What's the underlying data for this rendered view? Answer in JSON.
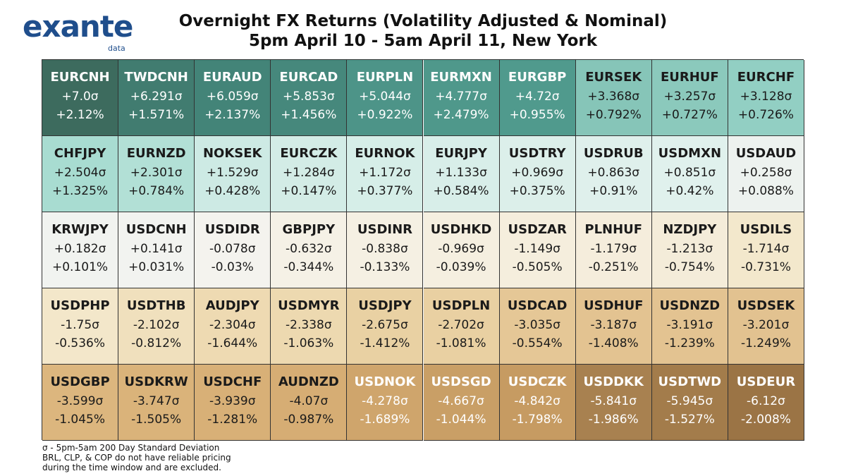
{
  "logo": {
    "word": "exante",
    "sub": "data"
  },
  "title": {
    "line1": "Overnight FX Returns (Volatility Adjusted & Nominal)",
    "line2": "5pm April 10 - 5am April 11, New York"
  },
  "footnote": [
    "σ - 5pm-5am 200 Day Standard Deviation",
    "BRL, CLP, & COP do not have reliable pricing",
    "during the time window and are excluded."
  ],
  "colors": {
    "dark_green": "#3d6b5e",
    "mid_teal": "#4d9488",
    "light_teal": "#92cfc3",
    "pale_teal": "#cdeae4",
    "near_white": "#f1f3f0",
    "cream": "#f3e8cc",
    "tan": "#d9b47a",
    "brown": "#9b7445"
  },
  "chart_data": {
    "type": "table",
    "columns": 10,
    "cells": [
      {
        "pair": "EURCNH",
        "sigma": "+7.0σ",
        "pct": "+2.12%",
        "bg": "#3d6b5e",
        "fg": "#ffffff"
      },
      {
        "pair": "TWDCNH",
        "sigma": "+6.291σ",
        "pct": "+1.571%",
        "bg": "#417c70",
        "fg": "#ffffff"
      },
      {
        "pair": "EURAUD",
        "sigma": "+6.059σ",
        "pct": "+2.137%",
        "bg": "#438478",
        "fg": "#ffffff"
      },
      {
        "pair": "EURCAD",
        "sigma": "+5.853σ",
        "pct": "+1.456%",
        "bg": "#46887c",
        "fg": "#ffffff"
      },
      {
        "pair": "EURPLN",
        "sigma": "+5.044σ",
        "pct": "+0.922%",
        "bg": "#4d9488",
        "fg": "#ffffff"
      },
      {
        "pair": "EURMXN",
        "sigma": "+4.777σ",
        "pct": "+2.479%",
        "bg": "#4f988b",
        "fg": "#ffffff"
      },
      {
        "pair": "EURGBP",
        "sigma": "+4.72σ",
        "pct": "+0.955%",
        "bg": "#509a8d",
        "fg": "#ffffff"
      },
      {
        "pair": "EURSEK",
        "sigma": "+3.368σ",
        "pct": "+0.792%",
        "bg": "#86c5b8",
        "fg": "#1a1a1a"
      },
      {
        "pair": "EURHUF",
        "sigma": "+3.257σ",
        "pct": "+0.727%",
        "bg": "#8bc9bc",
        "fg": "#1a1a1a"
      },
      {
        "pair": "EURCHF",
        "sigma": "+3.128σ",
        "pct": "+0.726%",
        "bg": "#92cfc3",
        "fg": "#1a1a1a"
      },
      {
        "pair": "CHFJPY",
        "sigma": "+2.504σ",
        "pct": "+1.325%",
        "bg": "#a8dcd1",
        "fg": "#1a1a1a"
      },
      {
        "pair": "EURNZD",
        "sigma": "+2.301σ",
        "pct": "+0.784%",
        "bg": "#b2e0d6",
        "fg": "#1a1a1a"
      },
      {
        "pair": "NOKSEK",
        "sigma": "+1.529σ",
        "pct": "+0.428%",
        "bg": "#cdeae4",
        "fg": "#1a1a1a"
      },
      {
        "pair": "EURCZK",
        "sigma": "+1.284σ",
        "pct": "+0.147%",
        "bg": "#d3ece6",
        "fg": "#1a1a1a"
      },
      {
        "pair": "EURNOK",
        "sigma": "+1.172σ",
        "pct": "+0.377%",
        "bg": "#d6eee8",
        "fg": "#1a1a1a"
      },
      {
        "pair": "EURJPY",
        "sigma": "+1.133σ",
        "pct": "+0.584%",
        "bg": "#d8eee9",
        "fg": "#1a1a1a"
      },
      {
        "pair": "USDTRY",
        "sigma": "+0.969σ",
        "pct": "+0.375%",
        "bg": "#dcefea",
        "fg": "#1a1a1a"
      },
      {
        "pair": "USDRUB",
        "sigma": "+0.863σ",
        "pct": "+0.91%",
        "bg": "#dff0ec",
        "fg": "#1a1a1a"
      },
      {
        "pair": "USDMXN",
        "sigma": "+0.851σ",
        "pct": "+0.42%",
        "bg": "#e0f1ed",
        "fg": "#1a1a1a"
      },
      {
        "pair": "USDAUD",
        "sigma": "+0.258σ",
        "pct": "+0.088%",
        "bg": "#edf2ef",
        "fg": "#1a1a1a"
      },
      {
        "pair": "KRWJPY",
        "sigma": "+0.182σ",
        "pct": "+0.101%",
        "bg": "#f1f3f0",
        "fg": "#1a1a1a"
      },
      {
        "pair": "USDCNH",
        "sigma": "+0.141σ",
        "pct": "+0.031%",
        "bg": "#f2f3f0",
        "fg": "#1a1a1a"
      },
      {
        "pair": "USDIDR",
        "sigma": "-0.078σ",
        "pct": "-0.03%",
        "bg": "#f4f3ee",
        "fg": "#1a1a1a"
      },
      {
        "pair": "GBPJPY",
        "sigma": "-0.632σ",
        "pct": "-0.344%",
        "bg": "#f5f1e6",
        "fg": "#1a1a1a"
      },
      {
        "pair": "USDINR",
        "sigma": "-0.838σ",
        "pct": "-0.133%",
        "bg": "#f5f0e3",
        "fg": "#1a1a1a"
      },
      {
        "pair": "USDHKD",
        "sigma": "-0.969σ",
        "pct": "-0.039%",
        "bg": "#f5efe0",
        "fg": "#1a1a1a"
      },
      {
        "pair": "USDZAR",
        "sigma": "-1.149σ",
        "pct": "-0.505%",
        "bg": "#f5eedd",
        "fg": "#1a1a1a"
      },
      {
        "pair": "PLNHUF",
        "sigma": "-1.179σ",
        "pct": "-0.251%",
        "bg": "#f5eddc",
        "fg": "#1a1a1a"
      },
      {
        "pair": "NZDJPY",
        "sigma": "-1.213σ",
        "pct": "-0.754%",
        "bg": "#f4ecd9",
        "fg": "#1a1a1a"
      },
      {
        "pair": "USDILS",
        "sigma": "-1.714σ",
        "pct": "-0.731%",
        "bg": "#f3e8cc",
        "fg": "#1a1a1a"
      },
      {
        "pair": "USDPHP",
        "sigma": "-1.75σ",
        "pct": "-0.536%",
        "bg": "#f3e7ca",
        "fg": "#1a1a1a"
      },
      {
        "pair": "USDTHB",
        "sigma": "-2.102σ",
        "pct": "-0.812%",
        "bg": "#f0e0bd",
        "fg": "#1a1a1a"
      },
      {
        "pair": "AUDJPY",
        "sigma": "-2.304σ",
        "pct": "-1.644%",
        "bg": "#eedab2",
        "fg": "#1a1a1a"
      },
      {
        "pair": "USDMYR",
        "sigma": "-2.338σ",
        "pct": "-1.063%",
        "bg": "#edd9b0",
        "fg": "#1a1a1a"
      },
      {
        "pair": "USDJPY",
        "sigma": "-2.675σ",
        "pct": "-1.412%",
        "bg": "#e9d1a3",
        "fg": "#1a1a1a"
      },
      {
        "pair": "USDPLN",
        "sigma": "-2.702σ",
        "pct": "-1.081%",
        "bg": "#e9d0a2",
        "fg": "#1a1a1a"
      },
      {
        "pair": "USDCAD",
        "sigma": "-3.035σ",
        "pct": "-0.554%",
        "bg": "#e5c796",
        "fg": "#1a1a1a"
      },
      {
        "pair": "USDHUF",
        "sigma": "-3.187σ",
        "pct": "-1.408%",
        "bg": "#e3c391",
        "fg": "#1a1a1a"
      },
      {
        "pair": "USDNZD",
        "sigma": "-3.191σ",
        "pct": "-1.239%",
        "bg": "#e3c391",
        "fg": "#1a1a1a"
      },
      {
        "pair": "USDSEK",
        "sigma": "-3.201σ",
        "pct": "-1.249%",
        "bg": "#e2c290",
        "fg": "#1a1a1a"
      },
      {
        "pair": "USDGBP",
        "sigma": "-3.599σ",
        "pct": "-1.045%",
        "bg": "#dcb67e",
        "fg": "#1a1a1a"
      },
      {
        "pair": "USDKRW",
        "sigma": "-3.747σ",
        "pct": "-1.505%",
        "bg": "#dab37a",
        "fg": "#1a1a1a"
      },
      {
        "pair": "USDCHF",
        "sigma": "-3.939σ",
        "pct": "-1.281%",
        "bg": "#d8b077",
        "fg": "#1a1a1a"
      },
      {
        "pair": "AUDNZD",
        "sigma": "-4.07σ",
        "pct": "-0.987%",
        "bg": "#d6ad74",
        "fg": "#1a1a1a"
      },
      {
        "pair": "USDNOK",
        "sigma": "-4.278σ",
        "pct": "-1.689%",
        "bg": "#cfa56c",
        "fg": "#ffffff"
      },
      {
        "pair": "USDSGD",
        "sigma": "-4.667σ",
        "pct": "-1.044%",
        "bg": "#c99f66",
        "fg": "#ffffff"
      },
      {
        "pair": "USDCZK",
        "sigma": "-4.842σ",
        "pct": "-1.798%",
        "bg": "#c69b62",
        "fg": "#ffffff"
      },
      {
        "pair": "USDDKK",
        "sigma": "-5.841σ",
        "pct": "-1.986%",
        "bg": "#a88150",
        "fg": "#ffffff"
      },
      {
        "pair": "USDTWD",
        "sigma": "-5.945σ",
        "pct": "-1.527%",
        "bg": "#a37c4b",
        "fg": "#ffffff"
      },
      {
        "pair": "USDEUR",
        "sigma": "-6.12σ",
        "pct": "-2.008%",
        "bg": "#9b7445",
        "fg": "#ffffff"
      }
    ]
  }
}
